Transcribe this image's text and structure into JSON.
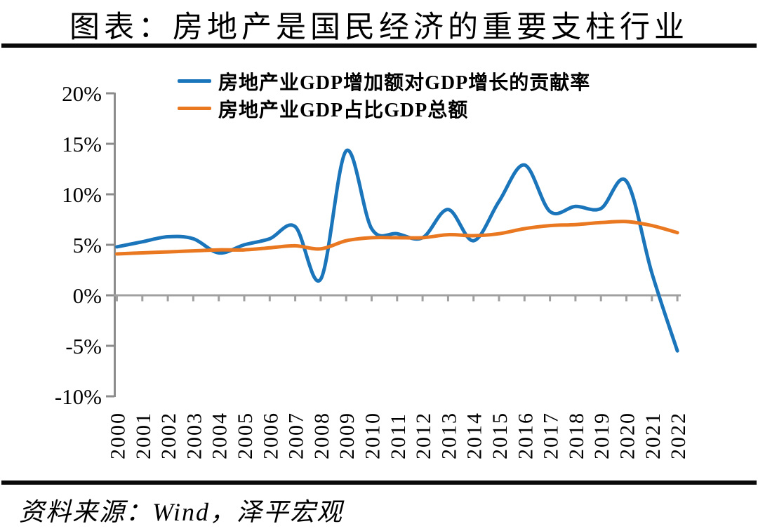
{
  "title": "图表：房地产是国民经济的重要支柱行业",
  "source_note": "资料来源：Wind，泽平宏观",
  "legend": {
    "items": [
      {
        "label": "房地产业GDP增加额对GDP增长的贡献率",
        "color": "#1B75BB"
      },
      {
        "label": "房地产业GDP占比GDP总额",
        "color": "#E97821"
      }
    ]
  },
  "colors": {
    "series_blue": "#1B75BB",
    "series_orange": "#E97821",
    "y_axis": "#8C8C8C",
    "x_axis": "#A0A0A0",
    "rule_black": "#0A0A0A"
  },
  "chart_data": {
    "type": "line",
    "smoothed": true,
    "grid": false,
    "legend_position": "top-left-inside",
    "categories": [
      "2000",
      "2001",
      "2002",
      "2003",
      "2004",
      "2005",
      "2006",
      "2007",
      "2008",
      "2009",
      "2010",
      "2011",
      "2012",
      "2013",
      "2014",
      "2015",
      "2016",
      "2017",
      "2018",
      "2019",
      "2020",
      "2021",
      "2022"
    ],
    "series": [
      {
        "name": "房地产业GDP增加额对GDP增长的贡献率",
        "color": "#1B75BB",
        "values": [
          4.8,
          5.3,
          5.8,
          5.6,
          4.2,
          5.0,
          5.6,
          6.8,
          1.6,
          14.3,
          6.6,
          6.1,
          5.7,
          8.5,
          5.4,
          9.3,
          12.9,
          8.3,
          8.8,
          8.6,
          11.3,
          2.2,
          -5.5
        ]
      },
      {
        "name": "房地产业GDP占比GDP总额",
        "color": "#E97821",
        "values": [
          4.1,
          4.2,
          4.3,
          4.4,
          4.5,
          4.5,
          4.7,
          4.9,
          4.6,
          5.4,
          5.7,
          5.7,
          5.7,
          6.0,
          5.9,
          6.1,
          6.6,
          6.9,
          7.0,
          7.2,
          7.3,
          6.9,
          6.2
        ]
      }
    ],
    "xlabel": "",
    "ylabel": "",
    "ylim": [
      -10,
      20
    ],
    "y_tick_values": [
      20,
      15,
      10,
      5,
      0,
      -5,
      -10
    ],
    "y_tick_labels": [
      "20%",
      "15%",
      "10%",
      "5%",
      "0%",
      "-5%",
      "-10%"
    ]
  }
}
